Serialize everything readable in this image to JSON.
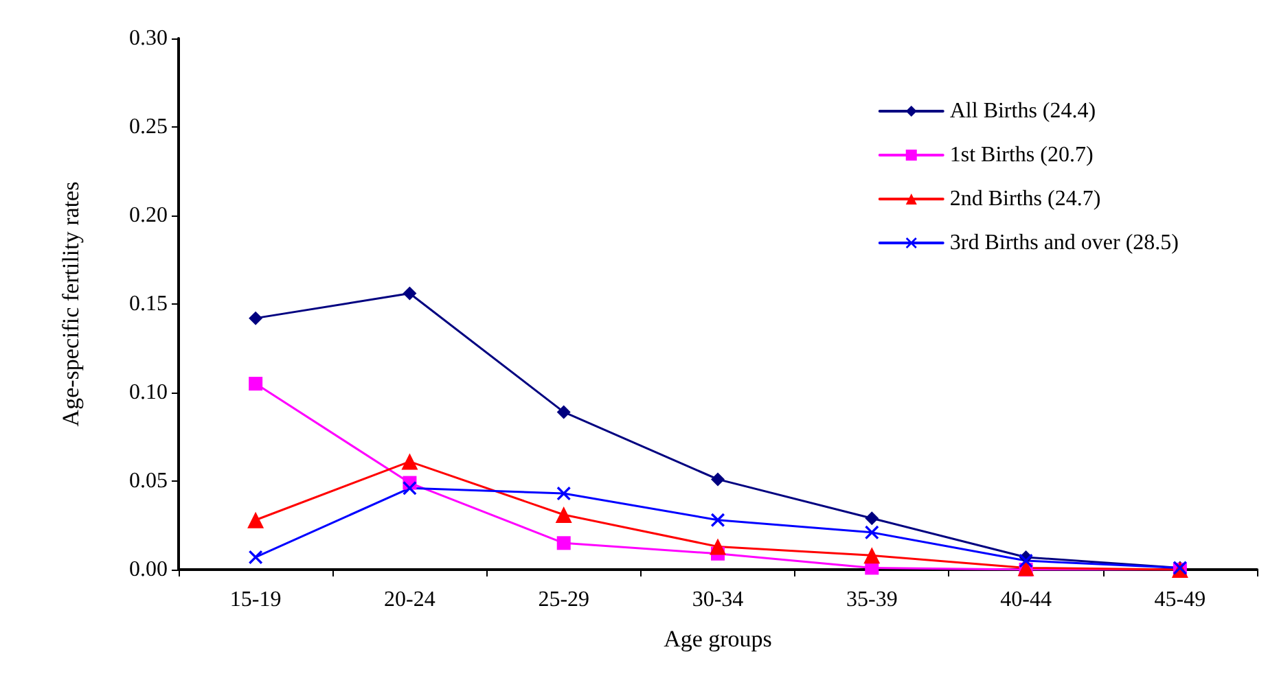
{
  "chart_data": {
    "type": "line",
    "xlabel": "Age groups",
    "ylabel": "Age-specific fertility rates",
    "categories": [
      "15-19",
      "20-24",
      "25-29",
      "30-34",
      "35-39",
      "40-44",
      "45-49"
    ],
    "series": [
      {
        "name": "All Births (24.4)",
        "color": "#000080",
        "marker": "diamond",
        "values": [
          0.142,
          0.156,
          0.089,
          0.051,
          0.029,
          0.007,
          0.001
        ]
      },
      {
        "name": "1st Births (20.7)",
        "color": "#ff00ff",
        "marker": "square",
        "values": [
          0.105,
          0.049,
          0.015,
          0.009,
          0.001,
          0.0,
          0.0
        ]
      },
      {
        "name": "2nd Births (24.7)",
        "color": "#ff0000",
        "marker": "triangle",
        "values": [
          0.028,
          0.061,
          0.031,
          0.013,
          0.008,
          0.001,
          0.0
        ]
      },
      {
        "name": "3rd Births and over (28.5)",
        "color": "#0000ff",
        "marker": "cross",
        "values": [
          0.007,
          0.046,
          0.043,
          0.028,
          0.021,
          0.005,
          0.001
        ]
      }
    ],
    "ylim": [
      0,
      0.3
    ],
    "yticks": [
      {
        "value": 0,
        "label": "0.00"
      },
      0.05,
      {
        "value": 0.1,
        "label": "0.10"
      },
      0.15,
      {
        "value": 0.2,
        "label": "0.20"
      },
      0.25,
      {
        "value": 0.3,
        "label": "0.30"
      }
    ],
    "grid": false,
    "legend": "top right"
  }
}
